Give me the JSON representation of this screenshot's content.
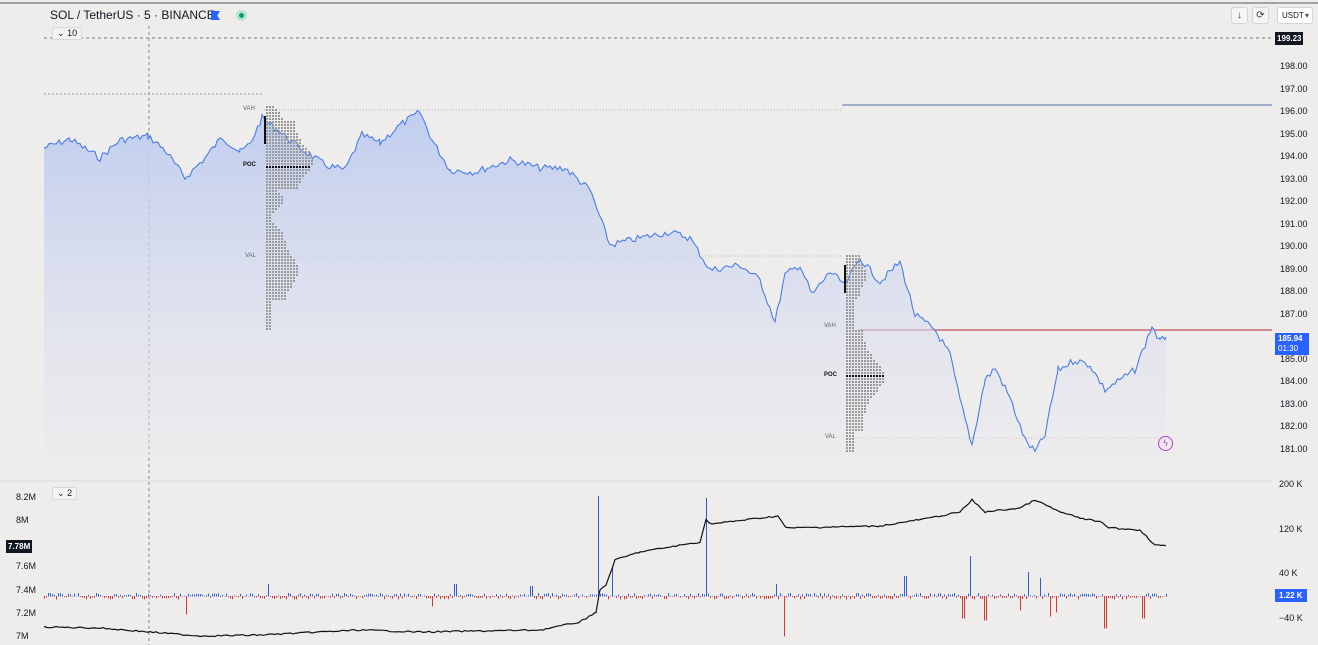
{
  "header": {
    "title": "SOL / TetherUS · 5 · BINANCE",
    "flag_icon": "flag-icon",
    "live_icon": "live-status-icon",
    "indicator_collapse_label": "10",
    "download_icon": "arrow-down-icon",
    "refresh_icon": "refresh-icon",
    "currency": "USDT"
  },
  "price_axis": {
    "top_value_tag": "199.23",
    "ticks": [
      "198.00",
      "197.00",
      "196.00",
      "195.00",
      "194.00",
      "193.00",
      "192.00",
      "191.00",
      "190.00",
      "189.00",
      "188.00",
      "187.00",
      "185.00",
      "184.00",
      "183.00",
      "182.00",
      "181.00"
    ],
    "current_price": "185.94",
    "countdown": "01:30",
    "tick_values": [
      198,
      197,
      196,
      195,
      194,
      193,
      192,
      191,
      190,
      189,
      188,
      187,
      185,
      184,
      183,
      182,
      181
    ],
    "current_price_value": 185.94,
    "top_value": 199.23
  },
  "volume_profiles": [
    {
      "vah_label": "VAH",
      "poc_label": "POC",
      "val_label": "VAL"
    },
    {
      "vah_label": "VAH",
      "poc_label": "POC",
      "val_label": "VAL"
    }
  ],
  "indicator_pane": {
    "collapse_label": "2",
    "left_ticks": [
      "8.2M",
      "8M",
      "7.6M",
      "7.4M",
      "7.2M",
      "7M"
    ],
    "left_current": "7.78M",
    "right_ticks": [
      "200 K",
      "120 K",
      "40 K",
      "−40 K"
    ],
    "right_current": "1.22 K",
    "left_tick_values": [
      8.2,
      8.0,
      7.6,
      7.4,
      7.2,
      7.0
    ],
    "left_current_value": 7.78,
    "right_tick_values": [
      200,
      120,
      40,
      -40
    ],
    "right_current_value": 1.22
  },
  "colors": {
    "background": "#efecec",
    "price_line": "#4a7ee6",
    "price_fill": "#c7d3f1",
    "resistance_line": "#b22833",
    "top_line": "#4d6ea8",
    "cum_line": "#111111",
    "volume_up": "#2f5fd6",
    "volume_down": "#d63838",
    "current_tag": "#2962ff"
  },
  "icons": {
    "lightning": "lightning-icon"
  }
}
